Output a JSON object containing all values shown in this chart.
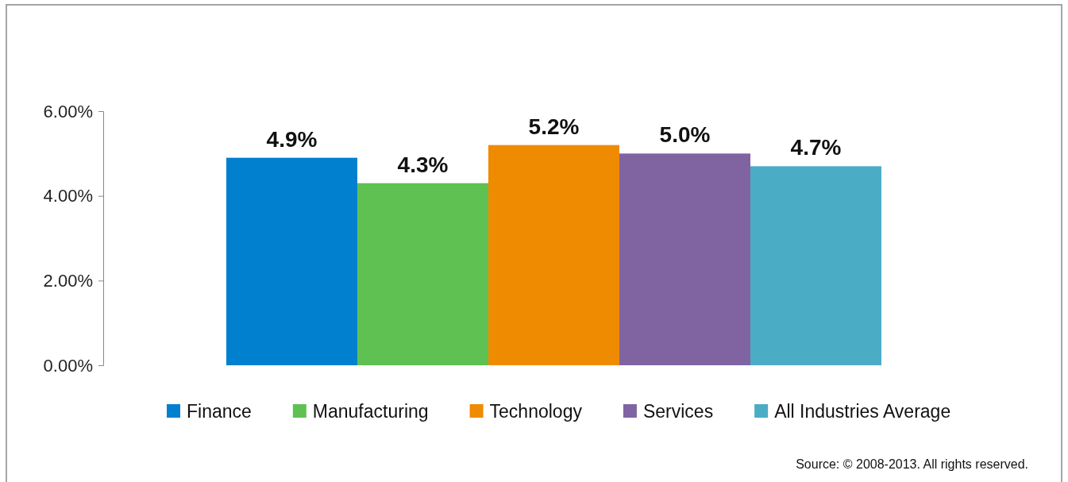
{
  "chart_data": {
    "type": "bar",
    "categories": [
      null
    ],
    "series": [
      {
        "name": "Finance",
        "color": "#0180cf",
        "values": [
          4.9
        ],
        "value_labels": [
          "4.9%"
        ]
      },
      {
        "name": "Manufacturing",
        "color": "#5fc152",
        "values": [
          4.3
        ],
        "value_labels": [
          "4.3%"
        ]
      },
      {
        "name": "Technology",
        "color": "#ef8b01",
        "values": [
          5.2
        ],
        "value_labels": [
          "5.2%"
        ]
      },
      {
        "name": "Services",
        "color": "#8064a2",
        "values": [
          5.0
        ],
        "value_labels": [
          "5.0%"
        ]
      },
      {
        "name": "All Industries Average",
        "color": "#4bacc6",
        "values": [
          4.7
        ],
        "value_labels": [
          "4.7%"
        ]
      }
    ],
    "ylim": [
      0,
      6
    ],
    "yticks": [
      {
        "value": 0,
        "label": "0.00%"
      },
      {
        "value": 2,
        "label": "2.00%"
      },
      {
        "value": 4,
        "label": "4.00%"
      },
      {
        "value": 6,
        "label": "6.00%"
      }
    ],
    "legend": "bottom",
    "annotations": [
      "Source: © 2008-2013. All rights reserved."
    ]
  }
}
